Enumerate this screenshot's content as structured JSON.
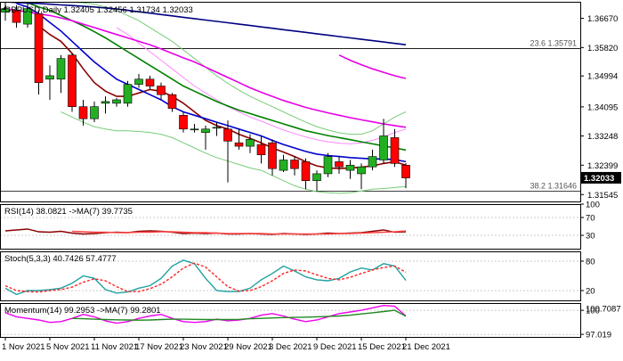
{
  "header": {
    "symbol": "GBPUSD",
    "timeframe": "Daily",
    "open": "1.32405",
    "high": "1.32456",
    "low": "1.31734",
    "close": "1.32033"
  },
  "colors": {
    "bull": "#22b022",
    "bear": "#ff0000",
    "ma_dark_red": "#8b0000",
    "ma_blue": "#0000cc",
    "ma_green": "#008000",
    "ma_magenta": "#e600e6",
    "ma_navy": "#000080",
    "bb_band": "#77cc77",
    "bb_pink": "#ff88ff",
    "rsi_line": "#8b0000",
    "rsi_ma": "#ff4444",
    "stoch_main": "#20a0a0",
    "stoch_signal": "#ff2222",
    "mom_line": "#ee00ee",
    "mom_ma": "#228822",
    "price_badge_bg": "#000000",
    "price_badge_text": "#ffffff",
    "fib_line": "#000000",
    "grid": "#bbbbbb"
  },
  "chart_data": [
    {
      "type": "candlestick",
      "title": "GBPUSD,Daily",
      "y_ticks": [
        1.3667,
        1.3582,
        1.34994,
        1.34095,
        1.33248,
        1.32399,
        1.31545
      ],
      "y_tick_labels": [
        "1.36670",
        "1.35820",
        "1.34994",
        "1.34095",
        "1.33248",
        "1.32399",
        "1.31545"
      ],
      "ylim": [
        1.31345,
        1.3715
      ],
      "x_labels": [
        "1 Nov 2021",
        "5 Nov 2021",
        "11 Nov 2021",
        "17 Nov 2021",
        "23 Nov 2021",
        "29 Nov 2021",
        "3 Dec 2021",
        "9 Dec 2021",
        "15 Dec 2021",
        "21 Dec 2021"
      ],
      "x_label_index": [
        0,
        4,
        8,
        12,
        16,
        20,
        24,
        28,
        32,
        36
      ],
      "candles": [
        {
          "o": 1.3685,
          "h": 1.372,
          "l": 1.366,
          "c": 1.3695
        },
        {
          "o": 1.369,
          "h": 1.3705,
          "l": 1.364,
          "c": 1.3655
        },
        {
          "o": 1.365,
          "h": 1.371,
          "l": 1.364,
          "c": 1.3695
        },
        {
          "o": 1.368,
          "h": 1.369,
          "l": 1.3445,
          "c": 1.348
        },
        {
          "o": 1.349,
          "h": 1.353,
          "l": 1.343,
          "c": 1.35
        },
        {
          "o": 1.349,
          "h": 1.356,
          "l": 1.345,
          "c": 1.355
        },
        {
          "o": 1.356,
          "h": 1.3565,
          "l": 1.3395,
          "c": 1.341
        },
        {
          "o": 1.341,
          "h": 1.343,
          "l": 1.3355,
          "c": 1.3375
        },
        {
          "o": 1.3375,
          "h": 1.3425,
          "l": 1.3365,
          "c": 1.341
        },
        {
          "o": 1.342,
          "h": 1.344,
          "l": 1.339,
          "c": 1.3425
        },
        {
          "o": 1.342,
          "h": 1.3435,
          "l": 1.341,
          "c": 1.343
        },
        {
          "o": 1.342,
          "h": 1.3485,
          "l": 1.341,
          "c": 1.3475
        },
        {
          "o": 1.3475,
          "h": 1.3505,
          "l": 1.3465,
          "c": 1.349
        },
        {
          "o": 1.349,
          "h": 1.35,
          "l": 1.346,
          "c": 1.347
        },
        {
          "o": 1.347,
          "h": 1.348,
          "l": 1.343,
          "c": 1.3445
        },
        {
          "o": 1.3445,
          "h": 1.345,
          "l": 1.3395,
          "c": 1.3405
        },
        {
          "o": 1.3385,
          "h": 1.3395,
          "l": 1.3335,
          "c": 1.3345
        },
        {
          "o": 1.3345,
          "h": 1.336,
          "l": 1.3335,
          "c": 1.3345
        },
        {
          "o": 1.3335,
          "h": 1.3355,
          "l": 1.3285,
          "c": 1.3345
        },
        {
          "o": 1.335,
          "h": 1.3365,
          "l": 1.3325,
          "c": 1.335
        },
        {
          "o": 1.3345,
          "h": 1.337,
          "l": 1.319,
          "c": 1.331
        },
        {
          "o": 1.3305,
          "h": 1.3345,
          "l": 1.3285,
          "c": 1.3295
        },
        {
          "o": 1.3295,
          "h": 1.333,
          "l": 1.3275,
          "c": 1.3315
        },
        {
          "o": 1.33,
          "h": 1.3325,
          "l": 1.3245,
          "c": 1.327
        },
        {
          "o": 1.3305,
          "h": 1.3315,
          "l": 1.321,
          "c": 1.323
        },
        {
          "o": 1.3225,
          "h": 1.327,
          "l": 1.322,
          "c": 1.3255
        },
        {
          "o": 1.3255,
          "h": 1.3265,
          "l": 1.321,
          "c": 1.323
        },
        {
          "o": 1.325,
          "h": 1.326,
          "l": 1.317,
          "c": 1.3195
        },
        {
          "o": 1.3195,
          "h": 1.3225,
          "l": 1.3165,
          "c": 1.3215
        },
        {
          "o": 1.3215,
          "h": 1.3275,
          "l": 1.3205,
          "c": 1.3265
        },
        {
          "o": 1.325,
          "h": 1.3265,
          "l": 1.3215,
          "c": 1.3235
        },
        {
          "o": 1.3225,
          "h": 1.3255,
          "l": 1.32,
          "c": 1.324
        },
        {
          "o": 1.3215,
          "h": 1.3245,
          "l": 1.317,
          "c": 1.3235
        },
        {
          "o": 1.3235,
          "h": 1.3285,
          "l": 1.3225,
          "c": 1.3265
        },
        {
          "o": 1.3255,
          "h": 1.3375,
          "l": 1.3245,
          "c": 1.3325
        },
        {
          "o": 1.332,
          "h": 1.3345,
          "l": 1.3235,
          "c": 1.3245
        },
        {
          "o": 1.324,
          "h": 1.3246,
          "l": 1.3173,
          "c": 1.3203
        }
      ],
      "moving_averages": [
        {
          "color_key": "ma_dark_red",
          "values": [
            null,
            null,
            null,
            1.3645,
            1.362,
            1.36,
            1.3565,
            1.352,
            1.348,
            1.3455,
            1.344,
            1.344,
            1.345,
            1.346,
            1.3455,
            1.344,
            1.342,
            1.3395,
            1.337,
            1.3355,
            1.3345,
            1.333,
            1.3318,
            1.3305,
            1.329,
            1.3278,
            1.3265,
            1.325,
            1.3238,
            1.3232,
            1.323,
            1.3232,
            1.3234,
            1.3238,
            1.3245,
            1.325,
            1.324
          ]
        },
        {
          "color_key": "ma_blue",
          "values": [
            null,
            1.371,
            1.37,
            1.368,
            1.3655,
            1.363,
            1.36,
            1.357,
            1.354,
            1.3515,
            1.349,
            1.3475,
            1.346,
            1.3445,
            1.343,
            1.341,
            1.3395,
            1.3385,
            1.3375,
            1.3365,
            1.3355,
            1.3345,
            1.3335,
            1.3325,
            1.3312,
            1.33,
            1.329,
            1.328,
            1.3272,
            1.3268,
            1.3265,
            1.3262,
            1.326,
            1.3258,
            1.3258,
            1.3256,
            1.325
          ]
        },
        {
          "color_key": "ma_green",
          "values": [
            null,
            null,
            1.3712,
            1.37,
            1.369,
            1.3675,
            1.366,
            1.3645,
            1.3628,
            1.361,
            1.359,
            1.357,
            1.355,
            1.353,
            1.351,
            1.349,
            1.347,
            1.3455,
            1.344,
            1.3425,
            1.3412,
            1.34,
            1.339,
            1.338,
            1.337,
            1.336,
            1.335,
            1.334,
            1.3333,
            1.3326,
            1.332,
            1.3314,
            1.3308,
            1.3302,
            1.3296,
            1.329,
            1.3284
          ]
        },
        {
          "color_key": "ma_magenta",
          "values": [
            1.3695,
            1.369,
            1.3685,
            1.368,
            1.3675,
            1.3668,
            1.366,
            1.365,
            1.364,
            1.363,
            1.362,
            1.361,
            1.36,
            1.359,
            1.3578,
            1.3565,
            1.3552,
            1.354,
            1.3525,
            1.351,
            1.3495,
            1.348,
            1.3465,
            1.3452,
            1.344,
            1.3428,
            1.3418,
            1.3408,
            1.34,
            1.3392,
            1.3385,
            1.3378,
            1.3372,
            1.3366,
            1.336,
            1.3355,
            1.335
          ]
        },
        {
          "color_key": "ma_navy",
          "values": [
            1.3715,
            1.3713,
            1.3711,
            1.371,
            1.3708,
            1.3706,
            1.3704,
            1.3702,
            1.37,
            1.3697,
            1.3694,
            1.369,
            1.3686,
            1.3682,
            1.3678,
            1.3674,
            1.367,
            1.3666,
            1.3662,
            1.3658,
            1.3654,
            1.365,
            1.3646,
            1.3642,
            1.3638,
            1.3634,
            1.363,
            1.3626,
            1.3622,
            1.3618,
            1.3614,
            1.361,
            1.3606,
            1.3602,
            1.3598,
            1.3594,
            1.359
          ]
        },
        {
          "color_key": "ma_magenta",
          "values": [
            null,
            null,
            null,
            null,
            null,
            null,
            null,
            null,
            null,
            null,
            null,
            null,
            null,
            null,
            null,
            null,
            null,
            null,
            null,
            null,
            null,
            null,
            null,
            null,
            null,
            null,
            null,
            null,
            null,
            null,
            1.356,
            1.3545,
            1.3532,
            1.352,
            1.351,
            1.35,
            1.3492
          ]
        }
      ],
      "bands": [
        {
          "color_key": "bb_band",
          "values": [
            null,
            null,
            null,
            null,
            null,
            1.3395,
            1.338,
            1.3365,
            1.3352,
            1.3345,
            1.334,
            1.334,
            1.3338,
            1.3335,
            1.333,
            1.332,
            1.3305,
            1.329,
            1.3275,
            1.3262,
            1.3252,
            1.3242,
            1.3232,
            1.3225,
            1.321,
            1.3195,
            1.318,
            1.317,
            1.3163,
            1.316,
            1.3158,
            1.316,
            1.3165,
            1.317,
            1.3172,
            1.3175,
            1.3178
          ]
        },
        {
          "color_key": "bb_band",
          "values": [
            null,
            null,
            null,
            null,
            null,
            1.3715,
            1.3714,
            1.3712,
            1.3708,
            1.37,
            1.369,
            1.3675,
            1.366,
            1.364,
            1.362,
            1.36,
            1.3575,
            1.355,
            1.3525,
            1.35,
            1.3478,
            1.3458,
            1.344,
            1.3425,
            1.341,
            1.3395,
            1.338,
            1.3365,
            1.3352,
            1.3342,
            1.3334,
            1.333,
            1.333,
            1.334,
            1.336,
            1.338,
            1.3395
          ]
        },
        {
          "color_key": "bb_pink",
          "values": [
            null,
            null,
            null,
            null,
            null,
            null,
            null,
            null,
            null,
            null,
            1.364,
            1.362,
            1.3595,
            1.357,
            1.3545,
            1.352,
            1.3495,
            1.347,
            1.345,
            1.343,
            1.341,
            1.3395,
            1.338,
            1.3368,
            1.3355,
            1.3342,
            1.3332,
            1.3322,
            1.3314,
            1.3308,
            1.3304,
            1.3302,
            1.3305,
            1.3312,
            1.3322,
            1.3335,
            1.3345
          ]
        }
      ],
      "fib_levels": [
        {
          "label": "23.6 1.35791",
          "price": 1.35791
        },
        {
          "label": "38.2 1.31646",
          "price": 1.31646
        }
      ],
      "current_price_label": "1.32033",
      "current_price": 1.32033
    },
    {
      "type": "line",
      "title": "RSI(14) 38.0821 ->MA(7) 39.7735",
      "ylim": [
        0,
        100
      ],
      "y_ticks": [
        30,
        70,
        100
      ],
      "y_tick_labels": [
        "30",
        "70",
        "100"
      ],
      "series": [
        {
          "color_key": "rsi_line",
          "values": [
            40,
            42,
            44,
            38,
            37,
            39,
            35,
            33,
            34,
            36,
            37,
            36,
            39,
            40,
            39,
            37,
            34,
            35,
            34,
            35,
            33,
            33,
            34,
            33,
            32,
            34,
            33,
            32,
            33,
            35,
            34,
            35,
            36,
            39,
            42,
            37,
            38
          ]
        },
        {
          "color_key": "rsi_ma",
          "values": [
            null,
            null,
            null,
            null,
            null,
            null,
            39,
            38,
            37,
            37,
            36,
            36,
            37,
            37,
            38,
            38,
            37,
            36,
            36,
            35,
            34,
            34,
            34,
            34,
            33,
            33,
            33,
            33,
            33,
            33,
            34,
            34,
            35,
            36,
            37,
            38,
            39.8
          ]
        }
      ]
    },
    {
      "type": "line",
      "title": "Stoch(5,3,3) 40.7426 57.4777",
      "ylim": [
        0,
        100
      ],
      "y_ticks": [
        20,
        80
      ],
      "y_tick_labels": [
        "20",
        "80"
      ],
      "series": [
        {
          "color_key": "stoch_main",
          "values": [
            25,
            12,
            20,
            20,
            22,
            25,
            35,
            50,
            45,
            22,
            15,
            17,
            25,
            30,
            45,
            70,
            82,
            75,
            45,
            20,
            18,
            18,
            25,
            42,
            55,
            70,
            60,
            48,
            42,
            40,
            45,
            58,
            66,
            62,
            75,
            70,
            40.7
          ]
        },
        {
          "color_key": "stoch_signal",
          "values": [
            30,
            20,
            18,
            17,
            20,
            22,
            27,
            37,
            44,
            40,
            28,
            18,
            18,
            24,
            33,
            48,
            66,
            76,
            68,
            48,
            28,
            19,
            20,
            28,
            40,
            55,
            62,
            60,
            52,
            45,
            42,
            47,
            55,
            62,
            67,
            70,
            57.5
          ]
        }
      ]
    },
    {
      "type": "line",
      "title": "Momentum(14) 99.2953 ->MA(7) 99.2801",
      "ylim": [
        96.7,
        100.9
      ],
      "y_ticks": [
        97.019,
        100
      ],
      "y_tick_labels": [
        "97.019",
        "100"
      ],
      "right_badge": "100.7087",
      "series": [
        {
          "color_key": "mom_line",
          "values": [
            99.7,
            99.2,
            99.0,
            98.8,
            98.5,
            98.6,
            99.0,
            99.5,
            99.2,
            98.7,
            98.4,
            98.6,
            99.0,
            99.3,
            99.5,
            99.0,
            98.6,
            98.5,
            98.6,
            98.9,
            98.7,
            98.8,
            99.0,
            99.4,
            99.6,
            99.3,
            98.9,
            98.6,
            98.8,
            99.2,
            99.6,
            99.8,
            100.0,
            100.3,
            100.6,
            100.5,
            99.3
          ]
        },
        {
          "color_key": "mom_ma",
          "values": [
            null,
            null,
            null,
            null,
            null,
            null,
            99.0,
            98.95,
            98.9,
            98.85,
            98.82,
            98.8,
            98.78,
            98.8,
            98.85,
            98.9,
            98.9,
            98.88,
            98.86,
            98.85,
            98.86,
            98.88,
            98.95,
            99.0,
            99.05,
            99.1,
            99.12,
            99.15,
            99.2,
            99.25,
            99.3,
            99.4,
            99.55,
            99.7,
            99.85,
            100.0,
            99.28
          ]
        }
      ]
    }
  ]
}
